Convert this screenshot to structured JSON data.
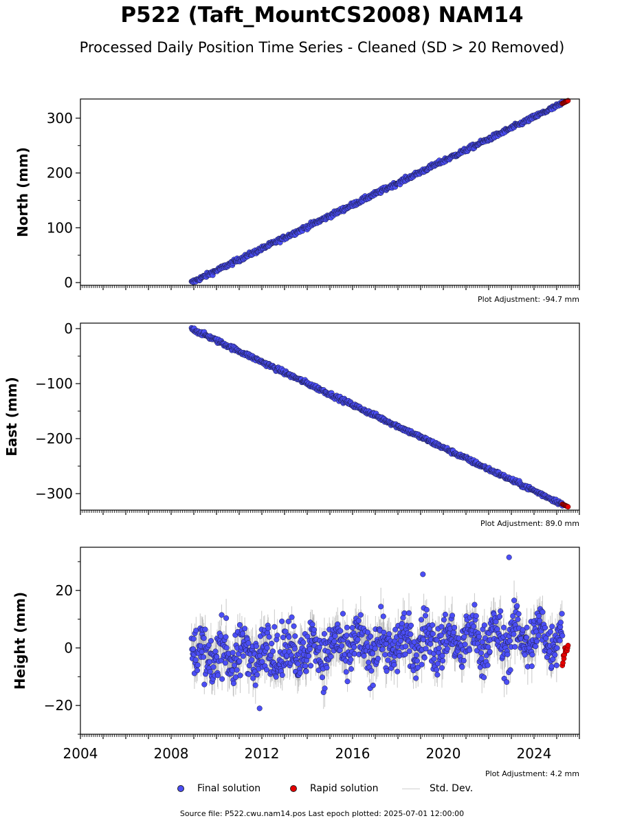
{
  "title": "P522 (Taft_MountCS2008) NAM14",
  "subtitle": "Processed Daily Position Time Series - Cleaned (SD > 20 Removed)",
  "chart_data": [
    {
      "type": "scatter",
      "ylabel": "North (mm)",
      "xlim": [
        2004,
        2026
      ],
      "ylim": [
        -5,
        335
      ],
      "yticks": [
        0,
        100,
        200,
        300
      ],
      "adjustment": "Plot Adjustment: -94.7 mm",
      "trend": {
        "start_x": 2008.9,
        "start_y": 0,
        "end_x": 2025.4,
        "end_y": 330
      },
      "scatter_noise_mm": 2,
      "series": [
        {
          "name": "Final solution",
          "x_range": [
            2008.9,
            2025.25
          ],
          "color": "#4b4ef5"
        },
        {
          "name": "Rapid solution",
          "x_range": [
            2025.25,
            2025.5
          ],
          "color": "#e50000"
        }
      ]
    },
    {
      "type": "scatter",
      "ylabel": "East (mm)",
      "xlim": [
        2004,
        2026
      ],
      "ylim": [
        -330,
        10
      ],
      "yticks": [
        0,
        -100,
        -200,
        -300
      ],
      "adjustment": "Plot Adjustment: 89.0 mm",
      "trend": {
        "start_x": 2008.9,
        "start_y": 0,
        "end_x": 2025.4,
        "end_y": -322
      },
      "scatter_noise_mm": 2,
      "series": [
        {
          "name": "Final solution",
          "x_range": [
            2008.9,
            2025.25
          ],
          "color": "#4b4ef5"
        },
        {
          "name": "Rapid solution",
          "x_range": [
            2025.25,
            2025.5
          ],
          "color": "#e50000"
        }
      ]
    },
    {
      "type": "scatter",
      "ylabel": "Height (mm)",
      "xlim": [
        2004,
        2026
      ],
      "ylim": [
        -30,
        35
      ],
      "yticks": [
        -20,
        0,
        20
      ],
      "xticks": [
        2004,
        2008,
        2012,
        2016,
        2020,
        2024
      ],
      "adjustment": "Plot Adjustment: 4.2 mm",
      "trend": {
        "start_x": 2008.9,
        "start_y": -8,
        "end_x": 2025.4,
        "end_y": 0
      },
      "scatter_noise_mm": 8,
      "outliers": [
        [
          2019.1,
          25.6
        ],
        [
          2022.9,
          31.5
        ],
        [
          2011.9,
          -21
        ]
      ],
      "series": [
        {
          "name": "Final solution",
          "x_range": [
            2008.9,
            2025.25
          ],
          "color": "#4b4ef5"
        },
        {
          "name": "Rapid solution",
          "x_range": [
            2025.25,
            2025.5
          ],
          "color": "#e50000"
        }
      ]
    }
  ],
  "legend": {
    "final": "Final solution",
    "rapid": "Rapid solution",
    "stddev": "Std. Dev."
  },
  "source_line": "Source file: P522.cwu.nam14.pos  Last epoch plotted: 2025-07-01 12:00:00",
  "colors": {
    "final": "#4b4ef5",
    "rapid": "#e50000",
    "stddev": "#bdbdbd"
  }
}
